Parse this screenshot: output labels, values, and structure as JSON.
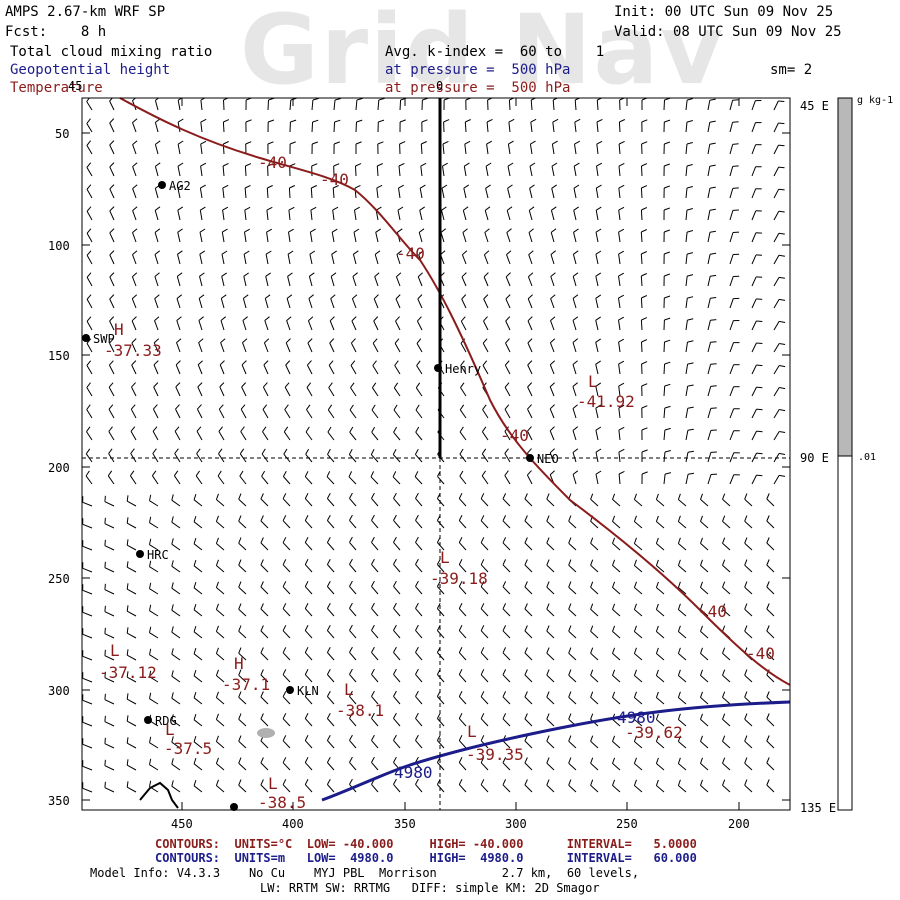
{
  "header": {
    "model": "AMPS 2.67-km WRF SP",
    "fcst": "Fcst:    8 h",
    "init": "Init: 00 UTC Sun 09 Nov 25",
    "valid": "Valid: 08 UTC Sun 09 Nov 25",
    "watermark": "Grid Nav",
    "field1": "Total cloud mixing ratio",
    "field2": "Geopotential height",
    "field3": "Temperature",
    "kindex": "Avg. k-index =  60 to    1",
    "pressure_blue": "at pressure =  500 hPa",
    "pressure_red": "at pressure =  500 hPa",
    "sm": "sm= 2"
  },
  "axes": {
    "y_ticks": [
      "50",
      "100",
      "150",
      "200",
      "250",
      "300",
      "350"
    ],
    "x_ticks": [
      "450",
      "400",
      "350",
      "300",
      "250",
      "200"
    ],
    "top_tick": "0",
    "corner_label": "45"
  },
  "colorbar": {
    "unit": "g kg-1",
    "label_low": ".01",
    "lon_labels": [
      "45 E",
      "90 E",
      "135 E"
    ]
  },
  "stations": [
    {
      "name": "AG2"
    },
    {
      "name": "SWP"
    },
    {
      "name": "Henry"
    },
    {
      "name": "NEO"
    },
    {
      "name": "HRC"
    },
    {
      "name": "KLN"
    },
    {
      "name": "RDG"
    }
  ],
  "contour_labels": {
    "temp": [
      "-40",
      "-40",
      "-40",
      "-40",
      "-40",
      "-40"
    ],
    "height": [
      "4980",
      "4980"
    ],
    "extrema": [
      {
        "kind": "H",
        "value": "-37.33"
      },
      {
        "kind": "L",
        "value": "-41.92"
      },
      {
        "kind": "L",
        "value": "-39.18"
      },
      {
        "kind": "L",
        "value": "-37.12"
      },
      {
        "kind": "H",
        "value": "-37.1"
      },
      {
        "kind": "L",
        "value": "-38.1"
      },
      {
        "kind": "L",
        "value": "-37.5"
      },
      {
        "kind": "L",
        "value": "-39.35"
      },
      {
        "kind": "L",
        "value": "-39.62"
      },
      {
        "kind": "L",
        "value": "-38.5"
      }
    ]
  },
  "footer": {
    "line1_red": "CONTOURS:  UNITS=°C  LOW= -40.000     HIGH= -40.000      INTERVAL=   5.0000",
    "line2_blue": "CONTOURS:  UNITS=m   LOW=  4980.0     HIGH=  4980.0      INTERVAL=   60.000",
    "line3": "Model Info: V4.3.3    No Cu    MYJ PBL  Morrison         2.7 km,  60 levels,",
    "line4": "LW: RRTM SW: RRTMG   DIFF: simple KM: 2D Smagor"
  },
  "colors": {
    "temp": "#8b1c1c",
    "height": "#1c1c8b",
    "cloud": "#b0b0b0",
    "grid": "#000000"
  }
}
